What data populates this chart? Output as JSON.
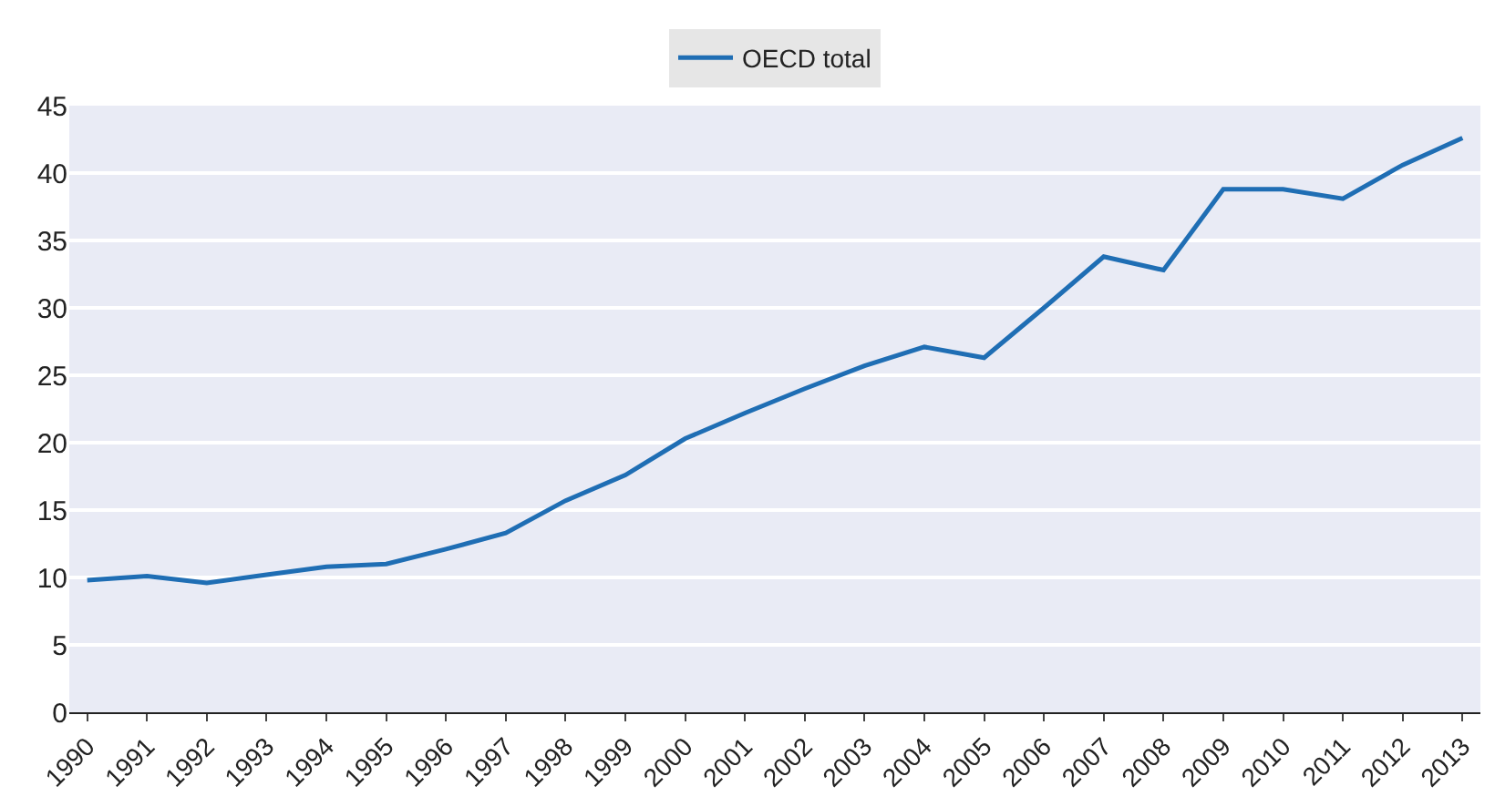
{
  "chart_data": {
    "type": "line",
    "categories": [
      "1990",
      "1991",
      "1992",
      "1993",
      "1994",
      "1995",
      "1996",
      "1997",
      "1998",
      "1999",
      "2000",
      "2001",
      "2002",
      "2003",
      "2004",
      "2005",
      "2006",
      "2007",
      "2008",
      "2009",
      "2010",
      "2011",
      "2012",
      "2013"
    ],
    "series": [
      {
        "name": "OECD total",
        "color": "#1f6eb4",
        "values": [
          9.8,
          10.1,
          9.6,
          10.2,
          10.8,
          11.0,
          12.1,
          13.3,
          15.7,
          17.6,
          20.3,
          22.2,
          24.0,
          25.7,
          27.1,
          26.3,
          30.0,
          33.8,
          32.8,
          38.8,
          38.8,
          38.1,
          40.6,
          42.6
        ]
      }
    ],
    "ylim": [
      0,
      45
    ],
    "yticks": [
      0,
      5,
      10,
      15,
      20,
      25,
      30,
      35,
      40,
      45
    ],
    "grid": "y",
    "legend": "top",
    "marker": "none",
    "line_style": "solid"
  }
}
